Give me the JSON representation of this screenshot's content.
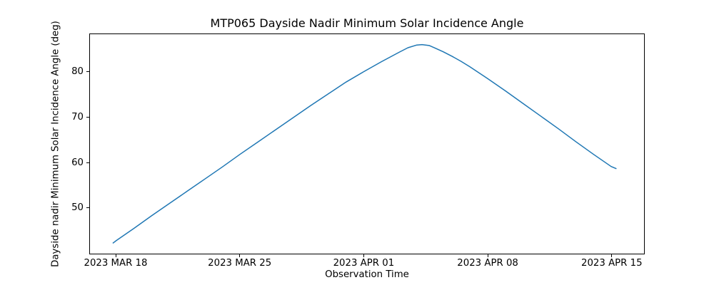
{
  "chart_data": {
    "type": "line",
    "title": "MTP065 Dayside Nadir Minimum Solar Incidence Angle",
    "xlabel": "Observation Time",
    "ylabel": "Dayside nadir Minimum Solar Incidence Angle (deg)",
    "line_color": "#1f77b4",
    "axis_color": "#000000",
    "grid": false,
    "legend": false,
    "x_unit": "days since 2023-03-18",
    "xlim": [
      -1.49,
      29.86
    ],
    "ylim": [
      39.8,
      88.4
    ],
    "x_ticks": [
      {
        "d": 0,
        "label": "2023 MAR 18"
      },
      {
        "d": 7,
        "label": "2023 MAR 25"
      },
      {
        "d": 14,
        "label": "2023 APR 01"
      },
      {
        "d": 21,
        "label": "2023 APR 08"
      },
      {
        "d": 28,
        "label": "2023 APR 15"
      }
    ],
    "y_ticks": [
      50,
      60,
      70,
      80
    ],
    "series": [
      {
        "name": "dayside-nadir-min-solar-incidence-angle",
        "points": [
          [
            -0.2,
            42.1
          ],
          [
            0,
            42.7
          ],
          [
            1,
            45.4
          ],
          [
            2,
            48.2
          ],
          [
            3,
            50.9
          ],
          [
            4,
            53.6
          ],
          [
            5,
            56.3
          ],
          [
            6,
            59.0
          ],
          [
            7,
            61.8
          ],
          [
            8,
            64.5
          ],
          [
            9,
            67.2
          ],
          [
            10,
            69.9
          ],
          [
            11,
            72.6
          ],
          [
            12,
            75.2
          ],
          [
            13,
            77.8
          ],
          [
            14,
            80.1
          ],
          [
            15,
            82.3
          ],
          [
            16,
            84.4
          ],
          [
            16.5,
            85.4
          ],
          [
            17,
            86.0
          ],
          [
            17.3,
            86.1
          ],
          [
            17.7,
            85.9
          ],
          [
            18,
            85.4
          ],
          [
            18.5,
            84.5
          ],
          [
            19,
            83.5
          ],
          [
            19.5,
            82.4
          ],
          [
            20,
            81.2
          ],
          [
            21,
            78.6
          ],
          [
            22,
            75.9
          ],
          [
            23,
            73.1
          ],
          [
            24,
            70.3
          ],
          [
            25,
            67.5
          ],
          [
            26,
            64.6
          ],
          [
            27,
            61.8
          ],
          [
            28,
            59.1
          ],
          [
            28.3,
            58.6
          ]
        ]
      }
    ]
  }
}
